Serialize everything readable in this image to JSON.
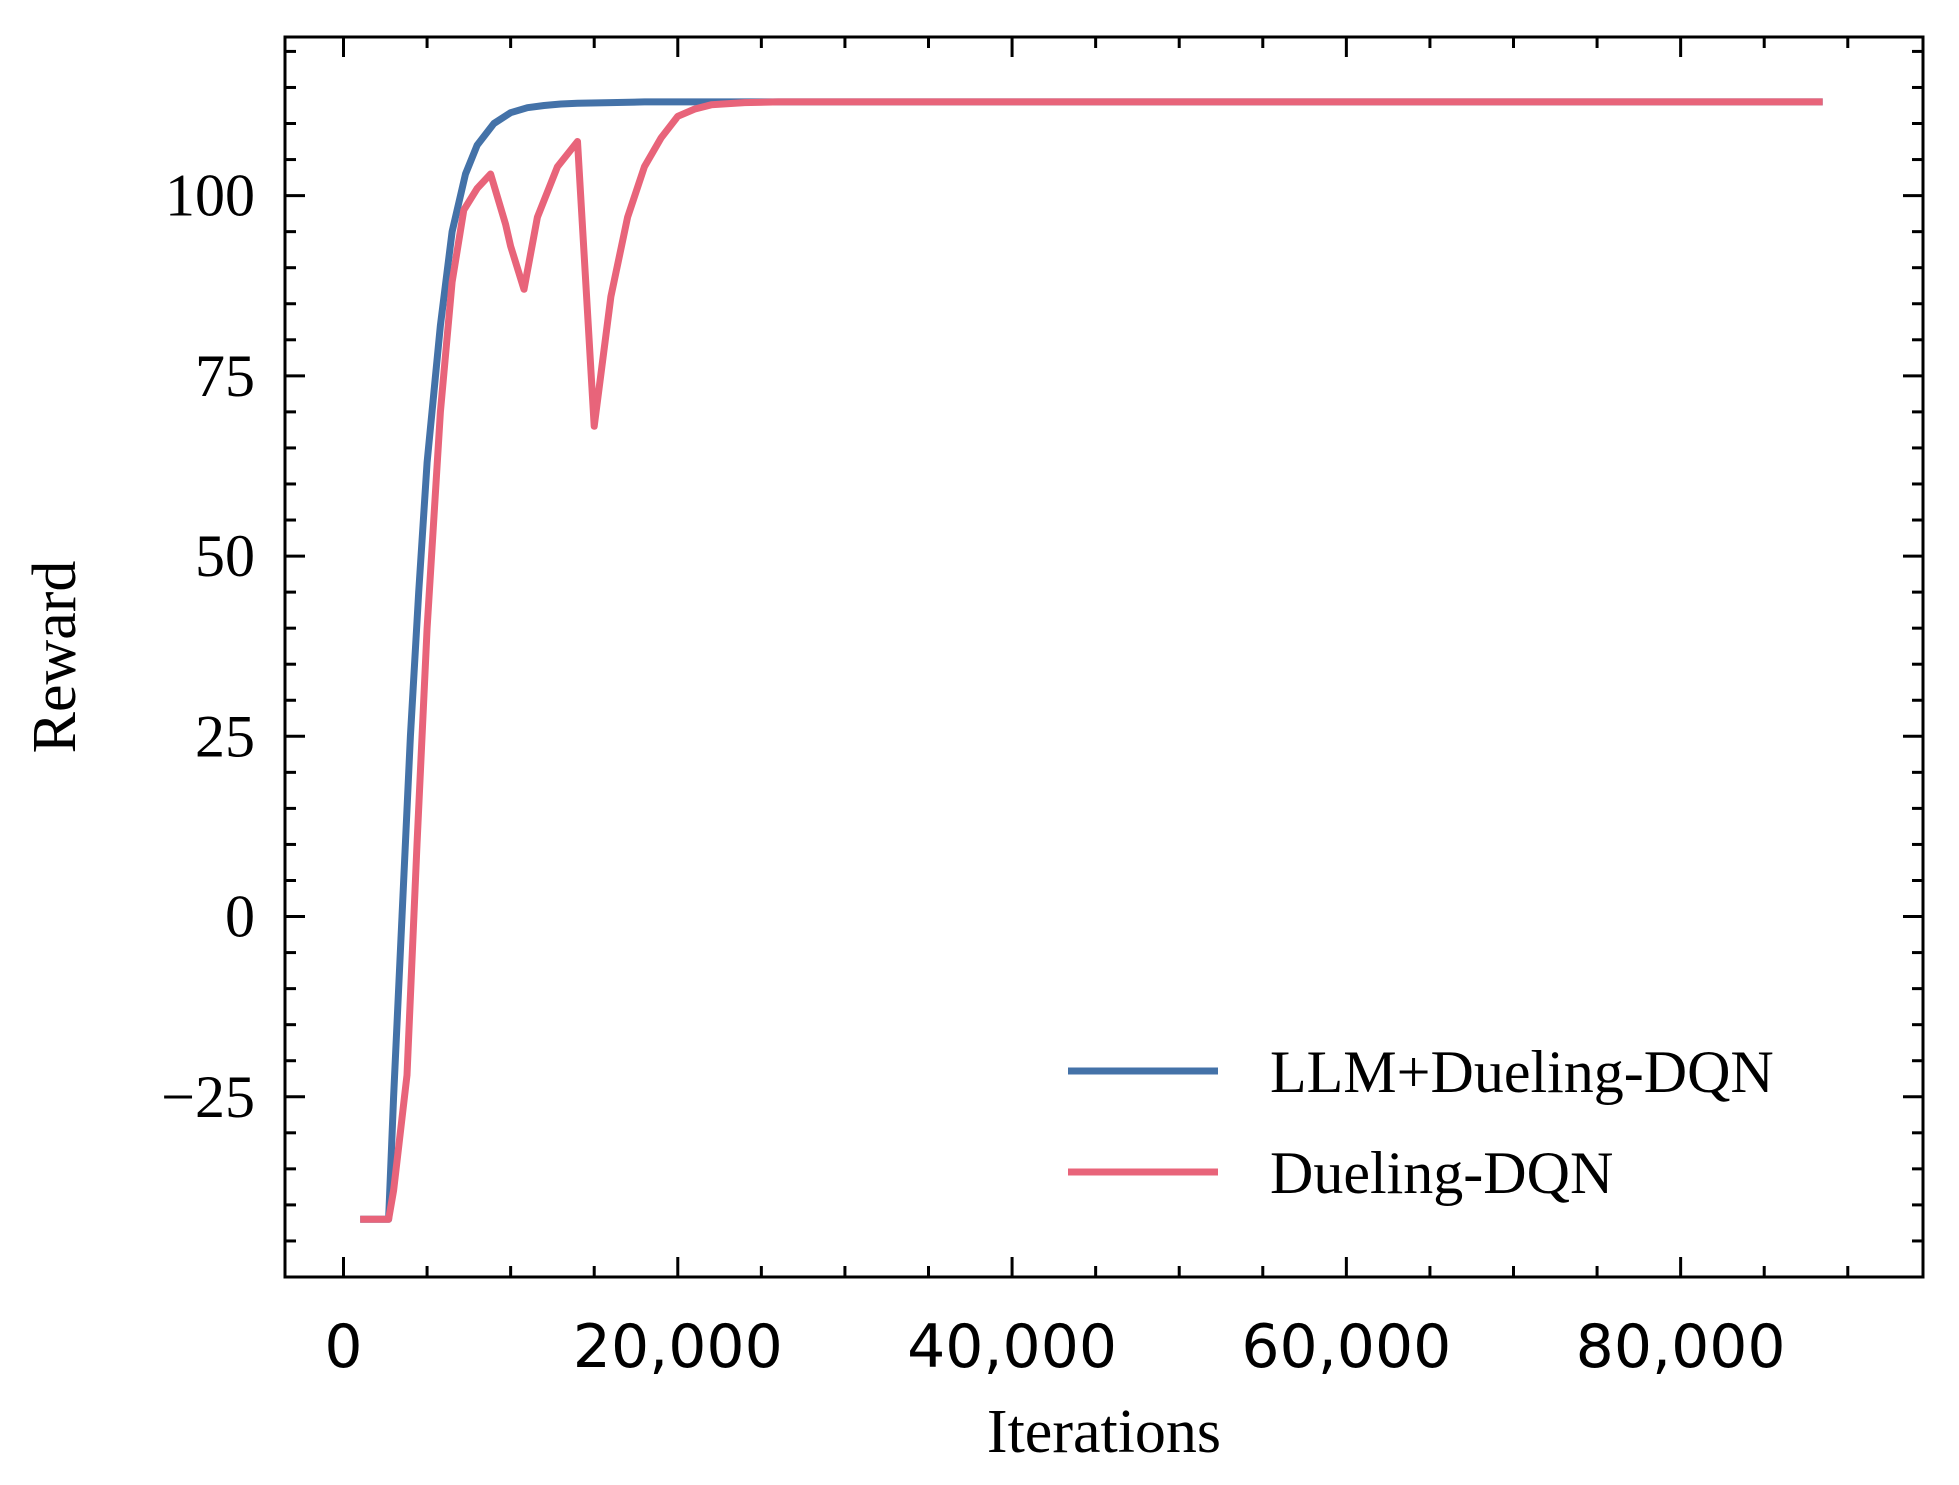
{
  "chart_data": {
    "type": "line",
    "title": "",
    "xlabel": "Iterations",
    "ylabel": "Reward",
    "xlim": [
      -3500,
      94500
    ],
    "ylim": [
      -50,
      122
    ],
    "xticks": [
      0,
      20000,
      40000,
      60000,
      80000
    ],
    "xtick_labels": [
      "0",
      "20,000",
      "40,000",
      "60,000",
      "80,000"
    ],
    "xminor_step": 5000,
    "yticks": [
      -25,
      0,
      25,
      50,
      75,
      100
    ],
    "ytick_labels": [
      "−25",
      "0",
      "25",
      "50",
      "75",
      "100"
    ],
    "yminor_step": 5,
    "grid": false,
    "legend_position": "lower-right",
    "series": [
      {
        "name": "LLM+Dueling-DQN",
        "color": "#4472a8",
        "x": [
          1000,
          2000,
          2700,
          3000,
          3500,
          4000,
          4500,
          5000,
          5800,
          6500,
          7300,
          8000,
          9000,
          10000,
          11000,
          12000,
          13000,
          14000,
          16000,
          18000,
          20000,
          25000,
          30000,
          40000,
          60000,
          80000,
          88500
        ],
        "y": [
          -42,
          -42,
          -42,
          -25,
          0,
          25,
          45,
          63,
          82,
          95,
          103,
          107,
          110,
          111.5,
          112.2,
          112.5,
          112.7,
          112.8,
          112.9,
          113,
          113,
          113,
          113,
          113,
          113,
          113,
          113
        ]
      },
      {
        "name": "Dueling-DQN",
        "color": "#e8647a",
        "x": [
          1000,
          2000,
          2700,
          3000,
          3800,
          4400,
          5000,
          5800,
          6500,
          7200,
          8000,
          8800,
          9700,
          10000,
          10800,
          11600,
          12800,
          14000,
          15000,
          16000,
          17000,
          18000,
          19000,
          20000,
          21000,
          22000,
          24000,
          26000,
          30000,
          40000,
          60000,
          80000,
          88500
        ],
        "y": [
          -42,
          -42,
          -42,
          -38,
          -22,
          10,
          40,
          70,
          88,
          98,
          101,
          103,
          96,
          93,
          87,
          97,
          104,
          107.5,
          68,
          86,
          97,
          104,
          108,
          111,
          112,
          112.6,
          112.9,
          113,
          113,
          113,
          113,
          113,
          113
        ]
      }
    ]
  }
}
